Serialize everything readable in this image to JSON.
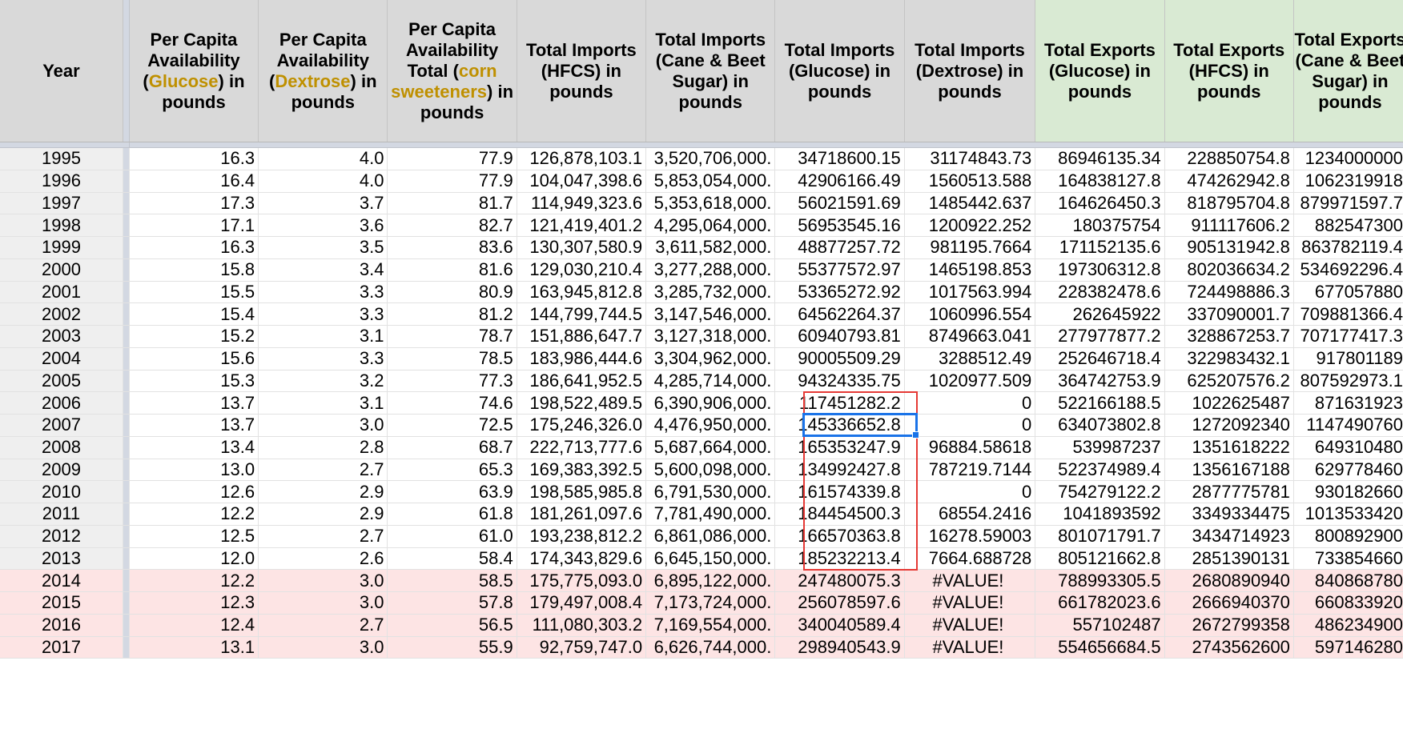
{
  "headers": {
    "year": "Year",
    "glucose": {
      "pre": "Per Capita Availability (",
      "hl": "Glucose",
      "post": ") in pounds"
    },
    "dextrose": {
      "pre": "Per Capita Availability (",
      "hl": "Dextrose",
      "post": ") in pounds"
    },
    "corn": {
      "pre": "Per Capita Availability Total (",
      "hl": "corn sweeteners",
      "post": ") in pounds"
    },
    "imp_hfcs": "Total Imports (HFCS) in pounds",
    "imp_cane": "Total Imports (Cane & Beet Sugar) in pounds",
    "imp_glucose": "Total Imports (Glucose) in pounds",
    "imp_dextrose": "Total Imports (Dextrose) in pounds",
    "exp_glucose": "Total Exports (Glucose) in pounds",
    "exp_hfcs": "Total Exports (HFCS) in pounds",
    "exp_cane": "Total Exports (Cane & Beet Sugar) in pounds"
  },
  "rows": [
    {
      "year": "1995",
      "glucose": "16.3",
      "dextrose": "4.0",
      "corn": "77.9",
      "imp_hfcs": "126,878,103.1",
      "imp_cane": "3,520,706,000.",
      "imp_glucose": "34718600.15",
      "imp_dextrose": "31174843.73",
      "exp_glucose": "86946135.34",
      "exp_hfcs": "228850754.8",
      "exp_cane": "1234000000"
    },
    {
      "year": "1996",
      "glucose": "16.4",
      "dextrose": "4.0",
      "corn": "77.9",
      "imp_hfcs": "104,047,398.6",
      "imp_cane": "5,853,054,000.",
      "imp_glucose": "42906166.49",
      "imp_dextrose": "1560513.588",
      "exp_glucose": "164838127.8",
      "exp_hfcs": "474262942.8",
      "exp_cane": "1062319918"
    },
    {
      "year": "1997",
      "glucose": "17.3",
      "dextrose": "3.7",
      "corn": "81.7",
      "imp_hfcs": "114,949,323.6",
      "imp_cane": "5,353,618,000.",
      "imp_glucose": "56021591.69",
      "imp_dextrose": "1485442.637",
      "exp_glucose": "164626450.3",
      "exp_hfcs": "818795704.8",
      "exp_cane": "879971597.7"
    },
    {
      "year": "1998",
      "glucose": "17.1",
      "dextrose": "3.6",
      "corn": "82.7",
      "imp_hfcs": "121,419,401.2",
      "imp_cane": "4,295,064,000.",
      "imp_glucose": "56953545.16",
      "imp_dextrose": "1200922.252",
      "exp_glucose": "180375754",
      "exp_hfcs": "911117606.2",
      "exp_cane": "882547300"
    },
    {
      "year": "1999",
      "glucose": "16.3",
      "dextrose": "3.5",
      "corn": "83.6",
      "imp_hfcs": "130,307,580.9",
      "imp_cane": "3,611,582,000.",
      "imp_glucose": "48877257.72",
      "imp_dextrose": "981195.7664",
      "exp_glucose": "171152135.6",
      "exp_hfcs": "905131942.8",
      "exp_cane": "863782119.4"
    },
    {
      "year": "2000",
      "glucose": "15.8",
      "dextrose": "3.4",
      "corn": "81.6",
      "imp_hfcs": "129,030,210.4",
      "imp_cane": "3,277,288,000.",
      "imp_glucose": "55377572.97",
      "imp_dextrose": "1465198.853",
      "exp_glucose": "197306312.8",
      "exp_hfcs": "802036634.2",
      "exp_cane": "534692296.4"
    },
    {
      "year": "2001",
      "glucose": "15.5",
      "dextrose": "3.3",
      "corn": "80.9",
      "imp_hfcs": "163,945,812.8",
      "imp_cane": "3,285,732,000.",
      "imp_glucose": "53365272.92",
      "imp_dextrose": "1017563.994",
      "exp_glucose": "228382478.6",
      "exp_hfcs": "724498886.3",
      "exp_cane": "677057880"
    },
    {
      "year": "2002",
      "glucose": "15.4",
      "dextrose": "3.3",
      "corn": "81.2",
      "imp_hfcs": "144,799,744.5",
      "imp_cane": "3,147,546,000.",
      "imp_glucose": "64562264.37",
      "imp_dextrose": "1060996.554",
      "exp_glucose": "262645922",
      "exp_hfcs": "337090001.7",
      "exp_cane": "709881366.4"
    },
    {
      "year": "2003",
      "glucose": "15.2",
      "dextrose": "3.1",
      "corn": "78.7",
      "imp_hfcs": "151,886,647.7",
      "imp_cane": "3,127,318,000.",
      "imp_glucose": "60940793.81",
      "imp_dextrose": "8749663.041",
      "exp_glucose": "277977877.2",
      "exp_hfcs": "328867253.7",
      "exp_cane": "707177417.3"
    },
    {
      "year": "2004",
      "glucose": "15.6",
      "dextrose": "3.3",
      "corn": "78.5",
      "imp_hfcs": "183,986,444.6",
      "imp_cane": "3,304,962,000.",
      "imp_glucose": "90005509.29",
      "imp_dextrose": "3288512.49",
      "exp_glucose": "252646718.4",
      "exp_hfcs": "322983432.1",
      "exp_cane": "917801189"
    },
    {
      "year": "2005",
      "glucose": "15.3",
      "dextrose": "3.2",
      "corn": "77.3",
      "imp_hfcs": "186,641,952.5",
      "imp_cane": "4,285,714,000.",
      "imp_glucose": "94324335.75",
      "imp_dextrose": "1020977.509",
      "exp_glucose": "364742753.9",
      "exp_hfcs": "625207576.2",
      "exp_cane": "807592973.1"
    },
    {
      "year": "2006",
      "glucose": "13.7",
      "dextrose": "3.1",
      "corn": "74.6",
      "imp_hfcs": "198,522,489.5",
      "imp_cane": "6,390,906,000.",
      "imp_glucose": "117451282.2",
      "imp_dextrose": "0",
      "exp_glucose": "522166188.5",
      "exp_hfcs": "1022625487",
      "exp_cane": "871631923"
    },
    {
      "year": "2007",
      "glucose": "13.7",
      "dextrose": "3.0",
      "corn": "72.5",
      "imp_hfcs": "175,246,326.0",
      "imp_cane": "4,476,950,000.",
      "imp_glucose": "145336652.8",
      "imp_dextrose": "0",
      "exp_glucose": "634073802.8",
      "exp_hfcs": "1272092340",
      "exp_cane": "1147490760"
    },
    {
      "year": "2008",
      "glucose": "13.4",
      "dextrose": "2.8",
      "corn": "68.7",
      "imp_hfcs": "222,713,777.6",
      "imp_cane": "5,687,664,000.",
      "imp_glucose": "165353247.9",
      "imp_dextrose": "96884.58618",
      "exp_glucose": "539987237",
      "exp_hfcs": "1351618222",
      "exp_cane": "649310480"
    },
    {
      "year": "2009",
      "glucose": "13.0",
      "dextrose": "2.7",
      "corn": "65.3",
      "imp_hfcs": "169,383,392.5",
      "imp_cane": "5,600,098,000.",
      "imp_glucose": "134992427.8",
      "imp_dextrose": "787219.7144",
      "exp_glucose": "522374989.4",
      "exp_hfcs": "1356167188",
      "exp_cane": "629778460"
    },
    {
      "year": "2010",
      "glucose": "12.6",
      "dextrose": "2.9",
      "corn": "63.9",
      "imp_hfcs": "198,585,985.8",
      "imp_cane": "6,791,530,000.",
      "imp_glucose": "161574339.8",
      "imp_dextrose": "0",
      "exp_glucose": "754279122.2",
      "exp_hfcs": "2877775781",
      "exp_cane": "930182660"
    },
    {
      "year": "2011",
      "glucose": "12.2",
      "dextrose": "2.9",
      "corn": "61.8",
      "imp_hfcs": "181,261,097.6",
      "imp_cane": "7,781,490,000.",
      "imp_glucose": "184454500.3",
      "imp_dextrose": "68554.2416",
      "exp_glucose": "1041893592",
      "exp_hfcs": "3349334475",
      "exp_cane": "1013533420"
    },
    {
      "year": "2012",
      "glucose": "12.5",
      "dextrose": "2.7",
      "corn": "61.0",
      "imp_hfcs": "193,238,812.2",
      "imp_cane": "6,861,086,000.",
      "imp_glucose": "166570363.8",
      "imp_dextrose": "16278.59003",
      "exp_glucose": "801071791.7",
      "exp_hfcs": "3434714923",
      "exp_cane": "800892900"
    },
    {
      "year": "2013",
      "glucose": "12.0",
      "dextrose": "2.6",
      "corn": "58.4",
      "imp_hfcs": "174,343,829.6",
      "imp_cane": "6,645,150,000.",
      "imp_glucose": "185232213.4",
      "imp_dextrose": "7664.688728",
      "exp_glucose": "805121662.8",
      "exp_hfcs": "2851390131",
      "exp_cane": "733854660"
    },
    {
      "year": "2014",
      "glucose": "12.2",
      "dextrose": "3.0",
      "corn": "58.5",
      "imp_hfcs": "175,775,093.0",
      "imp_cane": "6,895,122,000.",
      "imp_glucose": "247480075.3",
      "imp_dextrose": "#VALUE!",
      "exp_glucose": "788993305.5",
      "exp_hfcs": "2680890940",
      "exp_cane": "840868780"
    },
    {
      "year": "2015",
      "glucose": "12.3",
      "dextrose": "3.0",
      "corn": "57.8",
      "imp_hfcs": "179,497,008.4",
      "imp_cane": "7,173,724,000.",
      "imp_glucose": "256078597.6",
      "imp_dextrose": "#VALUE!",
      "exp_glucose": "661782023.6",
      "exp_hfcs": "2666940370",
      "exp_cane": "660833920"
    },
    {
      "year": "2016",
      "glucose": "12.4",
      "dextrose": "2.7",
      "corn": "56.5",
      "imp_hfcs": "111,080,303.2",
      "imp_cane": "7,169,554,000.",
      "imp_glucose": "340040589.4",
      "imp_dextrose": "#VALUE!",
      "exp_glucose": "557102487",
      "exp_hfcs": "2672799358",
      "exp_cane": "486234900"
    },
    {
      "year": "2017",
      "glucose": "13.1",
      "dextrose": "3.0",
      "corn": "55.9",
      "imp_hfcs": "92,759,747.0",
      "imp_cane": "6,626,744,000.",
      "imp_glucose": "298940543.9",
      "imp_dextrose": "#VALUE!",
      "exp_glucose": "554656684.5",
      "exp_hfcs": "2743562600",
      "exp_cane": "597146280"
    }
  ],
  "colors": {
    "header_bg": "#d9d9d9",
    "export_header_bg": "#d9ead3",
    "highlight_text": "#bf9000",
    "pink_row_bg": "#fde4e4",
    "range_outline": "#e53935",
    "active_cell": "#1a73e8"
  }
}
